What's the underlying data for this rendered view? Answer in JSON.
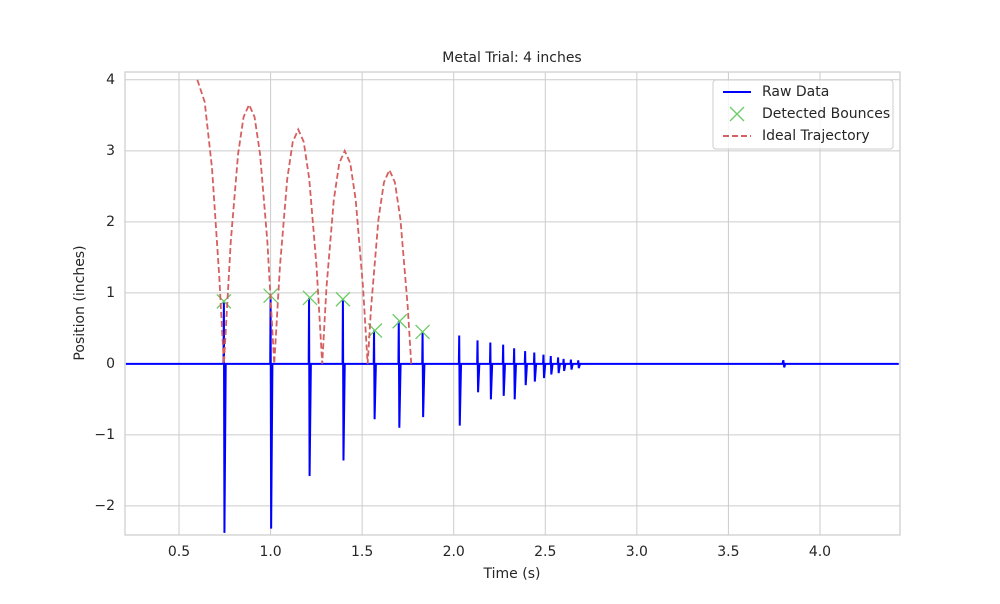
{
  "chart_data": {
    "type": "line",
    "title": "Metal Trial: 4 inches",
    "xlabel": "Time (s)",
    "ylabel": "Position (inches)",
    "xlim": [
      0.205,
      4.437
    ],
    "ylim": [
      -2.41,
      4.11
    ],
    "xticks": [
      {
        "value": 0.5,
        "label": "0.5"
      },
      {
        "value": 1.0,
        "label": "1.0"
      },
      {
        "value": 1.5,
        "label": "1.5"
      },
      {
        "value": 2.0,
        "label": "2.0"
      },
      {
        "value": 2.5,
        "label": "2.5"
      },
      {
        "value": 3.0,
        "label": "3.0"
      },
      {
        "value": 3.5,
        "label": "3.5"
      },
      {
        "value": 4.0,
        "label": "4.0"
      }
    ],
    "yticks": [
      {
        "value": -2,
        "label": "−2"
      },
      {
        "value": -1,
        "label": "−1"
      },
      0,
      1,
      2,
      3,
      4
    ],
    "grid": true,
    "legend": "upper right",
    "series": [
      {
        "name": "Raw Data",
        "color": "#0000ff",
        "mode": "line",
        "dash": false,
        "x": [
          0.21,
          0.743,
          0.745,
          0.748,
          0.755,
          0.998,
          1.0,
          1.003,
          1.01,
          1.208,
          1.21,
          1.213,
          1.22,
          1.393,
          1.395,
          1.398,
          1.405,
          1.563,
          1.565,
          1.568,
          1.575,
          1.698,
          1.7,
          1.703,
          1.71,
          1.828,
          1.83,
          1.833,
          1.84,
          2.028,
          2.03,
          2.033,
          2.04,
          2.128,
          2.13,
          2.133,
          2.14,
          2.198,
          2.2,
          2.203,
          2.21,
          2.268,
          2.27,
          2.273,
          2.28,
          2.328,
          2.33,
          2.333,
          2.34,
          2.388,
          2.39,
          2.393,
          2.4,
          2.438,
          2.44,
          2.443,
          2.45,
          2.488,
          2.49,
          2.493,
          2.5,
          2.528,
          2.53,
          2.533,
          2.54,
          2.568,
          2.57,
          2.573,
          2.58,
          2.598,
          2.6,
          2.603,
          2.61,
          2.638,
          2.64,
          2.643,
          2.65,
          2.678,
          2.68,
          2.683,
          2.69,
          3.795,
          3.8,
          3.805,
          3.81,
          4.43
        ],
        "values": [
          0,
          0,
          0.88,
          -2.38,
          0,
          0,
          0.96,
          -2.32,
          0,
          0,
          0.93,
          -1.58,
          0,
          0,
          0.91,
          -1.36,
          0,
          0,
          0.47,
          -0.78,
          0,
          0,
          0.6,
          -0.9,
          0,
          0,
          0.45,
          -0.75,
          0,
          0,
          0.4,
          -0.87,
          0,
          0,
          0.33,
          -0.4,
          0,
          0,
          0.3,
          -0.5,
          0,
          0,
          0.27,
          -0.45,
          0,
          0,
          0.22,
          -0.5,
          0,
          0,
          0.18,
          -0.3,
          0,
          0,
          0.16,
          -0.25,
          0,
          0,
          0.13,
          -0.2,
          0,
          0,
          0.11,
          -0.15,
          0,
          0,
          0.09,
          -0.13,
          0,
          0,
          0.07,
          -0.1,
          0,
          0,
          0.06,
          -0.08,
          0,
          0,
          0.05,
          -0.06,
          0,
          0,
          0.05,
          -0.05,
          0,
          0
        ]
      },
      {
        "name": "Detected Bounces",
        "color": "#6acc64",
        "mode": "markers",
        "dash": false,
        "x": [
          0.745,
          1.0,
          1.215,
          1.395,
          1.57,
          1.705,
          1.83
        ],
        "values": [
          0.88,
          0.96,
          0.93,
          0.91,
          0.47,
          0.6,
          0.45
        ]
      },
      {
        "name": "Ideal Trajectory",
        "color": "#d65f5f",
        "mode": "line",
        "dash": true,
        "x": [
          0.6,
          0.64,
          0.68,
          0.72,
          0.745,
          0.7825,
          0.8225,
          0.8525,
          0.8825,
          0.9125,
          0.9425,
          0.9825,
          1.02,
          1.051,
          1.091,
          1.121,
          1.151,
          1.181,
          1.211,
          1.251,
          1.282,
          1.305,
          1.345,
          1.375,
          1.405,
          1.435,
          1.465,
          1.505,
          1.53,
          1.549,
          1.589,
          1.619,
          1.649,
          1.679,
          1.709,
          1.749,
          1.768
        ],
        "values": [
          4.0,
          3.69,
          2.76,
          1.22,
          0,
          1.72,
          2.955,
          3.476,
          3.65,
          3.476,
          2.955,
          1.72,
          0,
          1.37,
          2.605,
          3.126,
          3.3,
          3.126,
          2.605,
          1.37,
          0,
          1.07,
          2.305,
          2.826,
          3.0,
          2.826,
          2.305,
          1.07,
          0,
          0.8,
          2.035,
          2.556,
          2.73,
          2.556,
          2.035,
          0.8,
          0
        ]
      }
    ]
  }
}
